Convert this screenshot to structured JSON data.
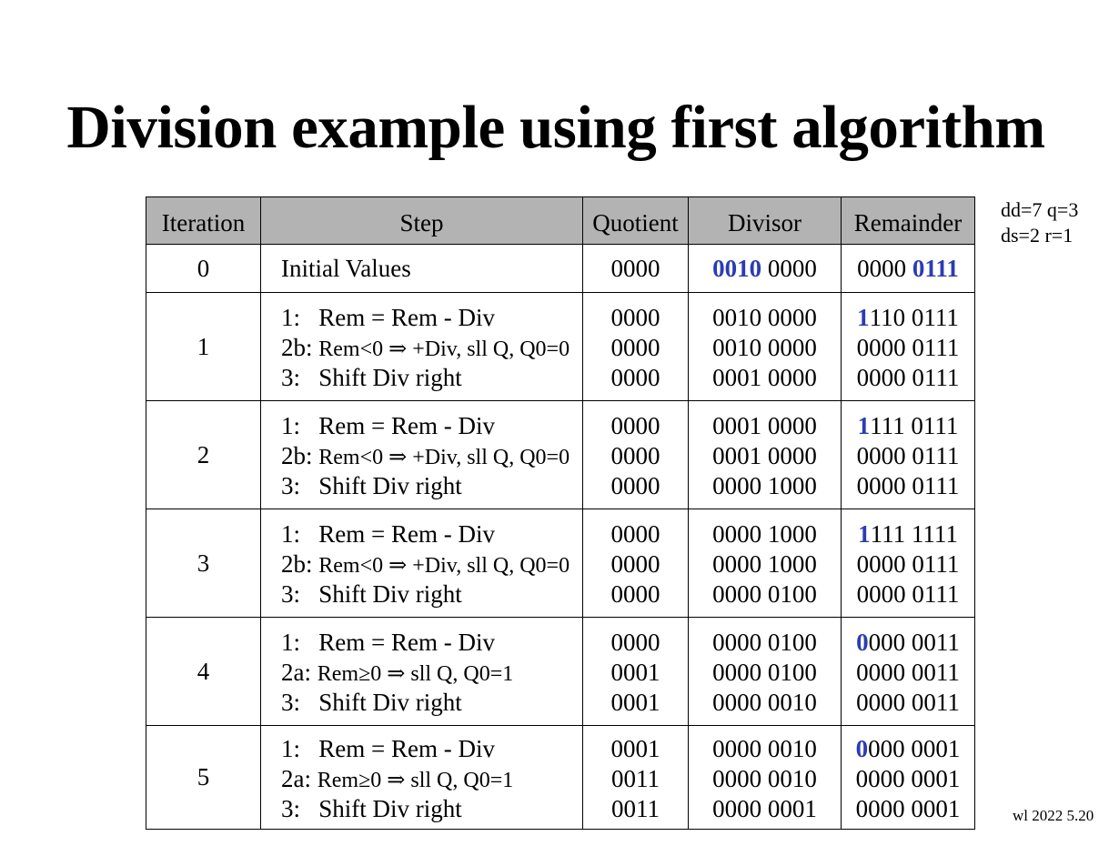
{
  "slide": {
    "title": "Division example using first algorithm",
    "side_note_line1": "dd=7 q=3",
    "side_note_line2": "ds=2  r=1",
    "footer": "wl 2022  5.20",
    "highlight_color": "#2b3cb3",
    "header_bg": "#b3b3b3"
  },
  "table": {
    "headers": [
      "Iteration",
      "Step",
      "Quotient",
      "Divisor",
      "Remainder"
    ],
    "row0": {
      "iteration": "0",
      "step": "Initial Values",
      "quotient": "0000",
      "divisor_hl": "0010",
      "divisor_rest": " 0000",
      "remainder_pre": "0000 ",
      "remainder_hl": "0111"
    },
    "rows": [
      {
        "iteration": "1",
        "step1": "1:   Rem = Rem - Div",
        "step2_prefix": "2b: ",
        "step2_rest": "Rem<0 ⇒ +Div, sll Q, Q0=0",
        "step3": "3:   Shift Div right",
        "quotients": [
          "0000",
          "0000",
          "0000"
        ],
        "divisors": [
          "0010 0000",
          "0010 0000",
          "0001 0000"
        ],
        "rem1_hl": "1",
        "rem1_rest": "110 0111",
        "rem2": "0000 0111",
        "rem3": "0000 0111"
      },
      {
        "iteration": "2",
        "step1": "1:   Rem = Rem - Div",
        "step2_prefix": "2b: ",
        "step2_rest": "Rem<0 ⇒ +Div, sll Q, Q0=0",
        "step3": "3:   Shift Div right",
        "quotients": [
          "0000",
          "0000",
          "0000"
        ],
        "divisors": [
          "0001 0000",
          "0001 0000",
          "0000 1000"
        ],
        "rem1_hl": "1",
        "rem1_rest": "111 0111",
        "rem2": "0000 0111",
        "rem3": "0000 0111"
      },
      {
        "iteration": "3",
        "step1": "1:   Rem = Rem - Div",
        "step2_prefix": "2b: ",
        "step2_rest": "Rem<0 ⇒ +Div, sll Q, Q0=0",
        "step3": "3:   Shift Div right",
        "quotients": [
          "0000",
          "0000",
          "0000"
        ],
        "divisors": [
          "0000 1000",
          "0000 1000",
          "0000 0100"
        ],
        "rem1_hl": "1",
        "rem1_rest": "111 1111",
        "rem2": "0000 0111",
        "rem3": "0000 0111"
      },
      {
        "iteration": "4",
        "step1": "1:   Rem = Rem - Div",
        "step2_prefix": "2a: ",
        "step2_rest": "Rem≥0 ⇒ sll Q, Q0=1",
        "step3": "3:   Shift Div right",
        "quotients": [
          "0000",
          "0001",
          "0001"
        ],
        "divisors": [
          "0000 0100",
          "0000 0100",
          "0000 0010"
        ],
        "rem1_hl": "0",
        "rem1_rest": "000 0011",
        "rem2": "0000 0011",
        "rem3": "0000 0011"
      },
      {
        "iteration": "5",
        "step1": "1:   Rem = Rem - Div",
        "step2_prefix": "2a: ",
        "step2_rest": "Rem≥0 ⇒ sll Q, Q0=1",
        "step3": "3:   Shift Div right",
        "quotients": [
          "0001",
          "0011",
          "0011"
        ],
        "divisors": [
          "0000 0010",
          "0000 0010",
          "0000 0001"
        ],
        "rem1_hl": "0",
        "rem1_rest": "000 0001",
        "rem2": "0000 0001",
        "rem3": "0000 0001"
      }
    ]
  }
}
